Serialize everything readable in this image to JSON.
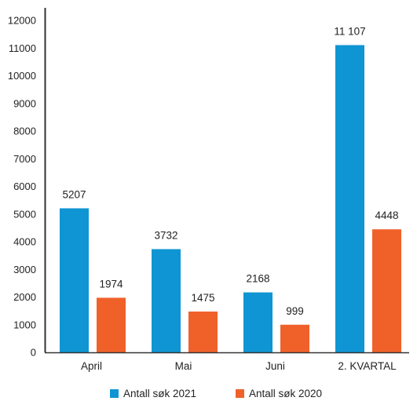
{
  "chart_data": {
    "type": "bar",
    "categories": [
      "April",
      "Mai",
      "Juni",
      "2. KVARTAL"
    ],
    "series": [
      {
        "name": "Antall søk 2021",
        "values": [
          5207,
          3732,
          2168,
          11107
        ],
        "labels": [
          "5207",
          "3732",
          "2168",
          "11 107"
        ],
        "color": "#0f95d3"
      },
      {
        "name": "Antall søk 2020",
        "values": [
          1974,
          1475,
          999,
          4448
        ],
        "labels": [
          "1974",
          "1475",
          "999",
          "4448"
        ],
        "color": "#f0612a"
      }
    ],
    "ylim": [
      0,
      12000
    ],
    "yticks": [
      0,
      1000,
      2000,
      3000,
      4000,
      5000,
      6000,
      7000,
      8000,
      9000,
      10000,
      11000,
      12000
    ],
    "grid": false,
    "legend_position": "bottom",
    "title": "",
    "xlabel": "",
    "ylabel": ""
  }
}
